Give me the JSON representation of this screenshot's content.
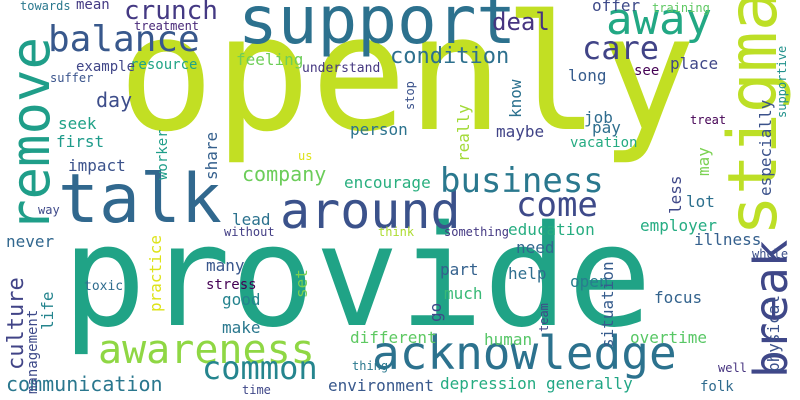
{
  "words": [
    {
      "text": "provide",
      "color": "#20a386",
      "vertical": false
    },
    {
      "text": "openly",
      "color": "#c2df23",
      "vertical": false
    },
    {
      "text": "support",
      "color": "#2c718e",
      "vertical": false
    },
    {
      "text": "talk",
      "color": "#31688e",
      "vertical": false
    },
    {
      "text": "around",
      "color": "#3b528b",
      "vertical": false
    },
    {
      "text": "acknowledge",
      "color": "#2c728e",
      "vertical": false
    },
    {
      "text": "awareness",
      "color": "#8fd744",
      "vertical": false
    },
    {
      "text": "balance",
      "color": "#38588c",
      "vertical": false
    },
    {
      "text": "business",
      "color": "#2a788e",
      "vertical": false
    },
    {
      "text": "away",
      "color": "#22a884",
      "vertical": false
    },
    {
      "text": "come",
      "color": "#3e4a89",
      "vertical": false
    },
    {
      "text": "common",
      "color": "#25858e",
      "vertical": false
    },
    {
      "text": "care",
      "color": "#414487",
      "vertical": false
    },
    {
      "text": "stigma",
      "color": "#bddf26",
      "vertical": true
    },
    {
      "text": "remove",
      "color": "#1f9e89",
      "vertical": true
    },
    {
      "text": "break",
      "color": "#3f4788",
      "vertical": true
    },
    {
      "text": "culture",
      "color": "#414487",
      "vertical": true
    },
    {
      "text": "crunch",
      "color": "#443983",
      "vertical": false
    },
    {
      "text": "condition",
      "color": "#2d708e",
      "vertical": false
    },
    {
      "text": "deal",
      "color": "#463480",
      "vertical": false
    },
    {
      "text": "company",
      "color": "#6ccd5a",
      "vertical": false
    },
    {
      "text": "communication",
      "color": "#2a778e",
      "vertical": false
    },
    {
      "text": "day",
      "color": "#3d4d8a",
      "vertical": false
    },
    {
      "text": "person",
      "color": "#2c738e",
      "vertical": false
    },
    {
      "text": "education",
      "color": "#27ad81",
      "vertical": false
    },
    {
      "text": "encourage",
      "color": "#29af7f",
      "vertical": false
    },
    {
      "text": "environment",
      "color": "#38588c",
      "vertical": false
    },
    {
      "text": "depression",
      "color": "#25ac82",
      "vertical": false
    },
    {
      "text": "generally",
      "color": "#21a685",
      "vertical": false
    },
    {
      "text": "overtime",
      "color": "#58c765",
      "vertical": false
    },
    {
      "text": "employer",
      "color": "#25ac82",
      "vertical": false
    },
    {
      "text": "illness",
      "color": "#35608d",
      "vertical": false
    },
    {
      "text": "different",
      "color": "#5ec962",
      "vertical": false
    },
    {
      "text": "human",
      "color": "#56c667",
      "vertical": false
    },
    {
      "text": "focus",
      "color": "#33638d",
      "vertical": false
    },
    {
      "text": "open",
      "color": "#287d8e",
      "vertical": false
    },
    {
      "text": "good",
      "color": "#25838e",
      "vertical": false
    },
    {
      "text": "stress",
      "color": "#440154",
      "vertical": false
    },
    {
      "text": "make",
      "color": "#2a788e",
      "vertical": false
    },
    {
      "text": "many",
      "color": "#39568c",
      "vertical": false
    },
    {
      "text": "part",
      "color": "#34618d",
      "vertical": false
    },
    {
      "text": "help",
      "color": "#2e6e8e",
      "vertical": false
    },
    {
      "text": "need",
      "color": "#31688e",
      "vertical": false
    },
    {
      "text": "much",
      "color": "#38b977",
      "vertical": false
    },
    {
      "text": "long",
      "color": "#365c8d",
      "vertical": false
    },
    {
      "text": "lead",
      "color": "#2c728e",
      "vertical": false
    },
    {
      "text": "first",
      "color": "#1e9b8a",
      "vertical": false
    },
    {
      "text": "impact",
      "color": "#3b528b",
      "vertical": false
    },
    {
      "text": "feeling",
      "color": "#6ece58",
      "vertical": false
    },
    {
      "text": "resource",
      "color": "#20a486",
      "vertical": false
    },
    {
      "text": "understand",
      "color": "#453781",
      "vertical": false
    },
    {
      "text": "example",
      "color": "#404688",
      "vertical": false
    },
    {
      "text": "treatment",
      "color": "#482878",
      "vertical": false
    },
    {
      "text": "towards",
      "color": "#2a788e",
      "vertical": false
    },
    {
      "text": "mean",
      "color": "#443a83",
      "vertical": false
    },
    {
      "text": "suffer",
      "color": "#3a548c",
      "vertical": false
    },
    {
      "text": "offer",
      "color": "#3e4a89",
      "vertical": false
    },
    {
      "text": "training",
      "color": "#5ec962",
      "vertical": false
    },
    {
      "text": "place",
      "color": "#3f4788",
      "vertical": false
    },
    {
      "text": "see",
      "color": "#440154",
      "vertical": false
    },
    {
      "text": "seek",
      "color": "#1fa187",
      "vertical": false
    },
    {
      "text": "job",
      "color": "#2f6c8e",
      "vertical": false
    },
    {
      "text": "pay",
      "color": "#2e6f8e",
      "vertical": false
    },
    {
      "text": "maybe",
      "color": "#404387",
      "vertical": false
    },
    {
      "text": "vacation",
      "color": "#25ab82",
      "vertical": false
    },
    {
      "text": "treat",
      "color": "#440154",
      "vertical": false
    },
    {
      "text": "lot",
      "color": "#2d708e",
      "vertical": false
    },
    {
      "text": "never",
      "color": "#31678e",
      "vertical": false
    },
    {
      "text": "way",
      "color": "#3e4989",
      "vertical": false
    },
    {
      "text": "without",
      "color": "#433e85",
      "vertical": false
    },
    {
      "text": "think",
      "color": "#addc30",
      "vertical": false
    },
    {
      "text": "something",
      "color": "#443983",
      "vertical": false
    },
    {
      "text": "toxic",
      "color": "#2f6c8e",
      "vertical": false
    },
    {
      "text": "whole",
      "color": "#3c4f8a",
      "vertical": false
    },
    {
      "text": "team",
      "color": "#3f4788",
      "vertical": true
    },
    {
      "text": "thing",
      "color": "#2a788e",
      "vertical": false
    },
    {
      "text": "time",
      "color": "#3f4788",
      "vertical": false
    },
    {
      "text": "folk",
      "color": "#2f6b8e",
      "vertical": false
    },
    {
      "text": "well",
      "color": "#46337f",
      "vertical": false
    },
    {
      "text": "us",
      "color": "#dde318",
      "vertical": false
    },
    {
      "text": "worker",
      "color": "#1f9e89",
      "vertical": true
    },
    {
      "text": "share",
      "color": "#35608d",
      "vertical": true
    },
    {
      "text": "really",
      "color": "#a2da37",
      "vertical": true
    },
    {
      "text": "stop",
      "color": "#3b528b",
      "vertical": true
    },
    {
      "text": "know",
      "color": "#2c718e",
      "vertical": true
    },
    {
      "text": "less",
      "color": "#3f4889",
      "vertical": true
    },
    {
      "text": "may",
      "color": "#7ad151",
      "vertical": true
    },
    {
      "text": "especially",
      "color": "#3b528b",
      "vertical": true
    },
    {
      "text": "supportive",
      "color": "#21918c",
      "vertical": true
    },
    {
      "text": "practice",
      "color": "#dde318",
      "vertical": true
    },
    {
      "text": "set",
      "color": "#7ad151",
      "vertical": true
    },
    {
      "text": "go",
      "color": "#3e4989",
      "vertical": true
    },
    {
      "text": "situation",
      "color": "#365c8d",
      "vertical": true
    },
    {
      "text": "physical",
      "color": "#3b528b",
      "vertical": true
    },
    {
      "text": "management",
      "color": "#3e4a89",
      "vertical": true
    },
    {
      "text": "life",
      "color": "#25858e",
      "vertical": true
    }
  ]
}
